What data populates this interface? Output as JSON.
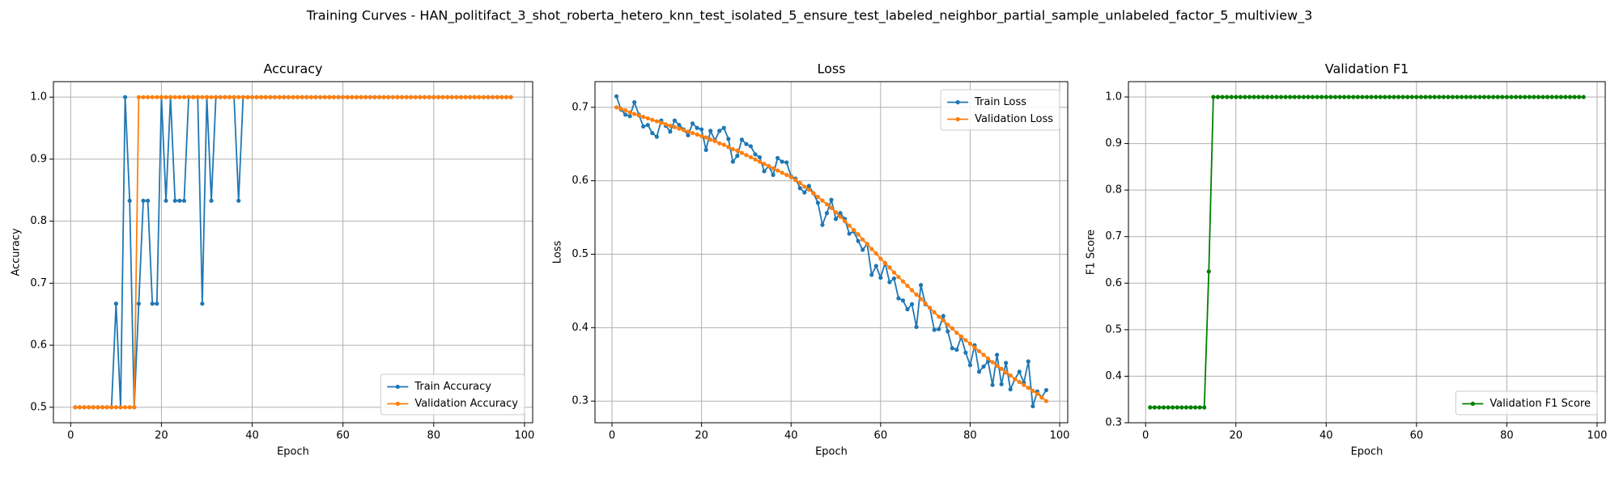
{
  "title": "Training Curves - HAN_politifact_3_shot_roberta_hetero_knn_test_isolated_5_ensure_test_labeled_neighbor_partial_sample_unlabeled_factor_5_multiview_3",
  "chart_data": [
    {
      "type": "line",
      "title": "Accuracy",
      "xlabel": "Epoch",
      "ylabel": "Accuracy",
      "x": [
        1,
        2,
        3,
        4,
        5,
        6,
        7,
        8,
        9,
        10,
        11,
        12,
        13,
        14,
        15,
        16,
        17,
        18,
        19,
        20,
        21,
        22,
        23,
        24,
        25,
        26,
        27,
        28,
        29,
        30,
        31,
        32,
        33,
        34,
        35,
        36,
        37,
        38,
        39,
        40,
        41,
        42,
        43,
        44,
        45,
        46,
        47,
        48,
        49,
        50,
        51,
        52,
        53,
        54,
        55,
        56,
        57,
        58,
        59,
        60,
        61,
        62,
        63,
        64,
        65,
        66,
        67,
        68,
        69,
        70,
        71,
        72,
        73,
        74,
        75,
        76,
        77,
        78,
        79,
        80,
        81,
        82,
        83,
        84,
        85,
        86,
        87,
        88,
        89,
        90,
        91,
        92,
        93,
        94,
        95,
        96,
        97
      ],
      "series": [
        {
          "name": "Train Accuracy",
          "color": "#1f77b4",
          "values": [
            0.5,
            0.5,
            0.5,
            0.5,
            0.5,
            0.5,
            0.5,
            0.5,
            0.5,
            0.667,
            0.5,
            1.0,
            0.833,
            0.5,
            0.667,
            0.833,
            0.833,
            0.667,
            0.667,
            1.0,
            0.833,
            1.0,
            0.833,
            0.833,
            0.833,
            1.0,
            1.0,
            1.0,
            0.667,
            1.0,
            0.833,
            1.0,
            1.0,
            1.0,
            1.0,
            1.0,
            0.833,
            1.0,
            1.0,
            1.0,
            1.0,
            1.0,
            1.0,
            1.0,
            1.0,
            1.0,
            1.0,
            1.0,
            1.0,
            1.0,
            1.0,
            1.0,
            1.0,
            1.0,
            1.0,
            1.0,
            1.0,
            1.0,
            1.0,
            1.0,
            1.0,
            1.0,
            1.0,
            1.0,
            1.0,
            1.0,
            1.0,
            1.0,
            1.0,
            1.0,
            1.0,
            1.0,
            1.0,
            1.0,
            1.0,
            1.0,
            1.0,
            1.0,
            1.0,
            1.0,
            1.0,
            1.0,
            1.0,
            1.0,
            1.0,
            1.0,
            1.0,
            1.0,
            1.0,
            1.0,
            1.0,
            1.0,
            1.0,
            1.0,
            1.0,
            1.0,
            1.0
          ]
        },
        {
          "name": "Validation Accuracy",
          "color": "#ff7f0e",
          "values": [
            0.5,
            0.5,
            0.5,
            0.5,
            0.5,
            0.5,
            0.5,
            0.5,
            0.5,
            0.5,
            0.5,
            0.5,
            0.5,
            0.5,
            1.0,
            1.0,
            1.0,
            1.0,
            1.0,
            1.0,
            1.0,
            1.0,
            1.0,
            1.0,
            1.0,
            1.0,
            1.0,
            1.0,
            1.0,
            1.0,
            1.0,
            1.0,
            1.0,
            1.0,
            1.0,
            1.0,
            1.0,
            1.0,
            1.0,
            1.0,
            1.0,
            1.0,
            1.0,
            1.0,
            1.0,
            1.0,
            1.0,
            1.0,
            1.0,
            1.0,
            1.0,
            1.0,
            1.0,
            1.0,
            1.0,
            1.0,
            1.0,
            1.0,
            1.0,
            1.0,
            1.0,
            1.0,
            1.0,
            1.0,
            1.0,
            1.0,
            1.0,
            1.0,
            1.0,
            1.0,
            1.0,
            1.0,
            1.0,
            1.0,
            1.0,
            1.0,
            1.0,
            1.0,
            1.0,
            1.0,
            1.0,
            1.0,
            1.0,
            1.0,
            1.0,
            1.0,
            1.0,
            1.0,
            1.0,
            1.0,
            1.0,
            1.0,
            1.0,
            1.0,
            1.0,
            1.0,
            1.0
          ]
        }
      ],
      "xlim": [
        -3.8,
        101.8
      ],
      "xticks": [
        0,
        20,
        40,
        60,
        80,
        100
      ],
      "ylim": [
        0.475,
        1.025
      ],
      "yticks": [
        0.5,
        0.6,
        0.7,
        0.8,
        0.9,
        {
          "value": 1,
          "label": "1.0"
        }
      ],
      "grid": true,
      "legend": "lower right"
    },
    {
      "type": "line",
      "title": "Loss",
      "xlabel": "Epoch",
      "ylabel": "Loss",
      "x": [
        1,
        2,
        3,
        4,
        5,
        6,
        7,
        8,
        9,
        10,
        11,
        12,
        13,
        14,
        15,
        16,
        17,
        18,
        19,
        20,
        21,
        22,
        23,
        24,
        25,
        26,
        27,
        28,
        29,
        30,
        31,
        32,
        33,
        34,
        35,
        36,
        37,
        38,
        39,
        40,
        41,
        42,
        43,
        44,
        45,
        46,
        47,
        48,
        49,
        50,
        51,
        52,
        53,
        54,
        55,
        56,
        57,
        58,
        59,
        60,
        61,
        62,
        63,
        64,
        65,
        66,
        67,
        68,
        69,
        70,
        71,
        72,
        73,
        74,
        75,
        76,
        77,
        78,
        79,
        80,
        81,
        82,
        83,
        84,
        85,
        86,
        87,
        88,
        89,
        90,
        91,
        92,
        93,
        94,
        95,
        96,
        97
      ],
      "series": [
        {
          "name": "Train Loss",
          "color": "#1f77b4",
          "values": [
            0.715,
            0.697,
            0.69,
            0.688,
            0.707,
            0.69,
            0.674,
            0.676,
            0.665,
            0.66,
            0.682,
            0.675,
            0.667,
            0.682,
            0.676,
            0.67,
            0.662,
            0.678,
            0.672,
            0.67,
            0.642,
            0.668,
            0.655,
            0.668,
            0.672,
            0.657,
            0.626,
            0.634,
            0.656,
            0.65,
            0.647,
            0.636,
            0.632,
            0.613,
            0.62,
            0.608,
            0.631,
            0.626,
            0.625,
            0.606,
            0.603,
            0.59,
            0.584,
            0.593,
            0.583,
            0.57,
            0.54,
            0.556,
            0.574,
            0.548,
            0.556,
            0.548,
            0.528,
            0.531,
            0.518,
            0.506,
            0.514,
            0.472,
            0.484,
            0.468,
            0.488,
            0.462,
            0.467,
            0.44,
            0.437,
            0.425,
            0.432,
            0.401,
            0.458,
            0.432,
            0.427,
            0.397,
            0.398,
            0.416,
            0.395,
            0.372,
            0.37,
            0.387,
            0.366,
            0.349,
            0.376,
            0.34,
            0.347,
            0.354,
            0.322,
            0.363,
            0.323,
            0.352,
            0.316,
            0.33,
            0.34,
            0.325,
            0.354,
            0.293,
            0.313,
            0.305,
            0.315
          ]
        },
        {
          "name": "Validation Loss",
          "color": "#ff7f0e",
          "values": [
            0.7,
            0.698,
            0.696,
            0.693,
            0.691,
            0.689,
            0.687,
            0.685,
            0.683,
            0.681,
            0.679,
            0.677,
            0.675,
            0.673,
            0.671,
            0.669,
            0.667,
            0.665,
            0.663,
            0.661,
            0.659,
            0.656,
            0.654,
            0.651,
            0.649,
            0.646,
            0.643,
            0.641,
            0.638,
            0.635,
            0.632,
            0.629,
            0.626,
            0.623,
            0.62,
            0.617,
            0.614,
            0.611,
            0.608,
            0.605,
            0.601,
            0.597,
            0.592,
            0.588,
            0.583,
            0.578,
            0.573,
            0.568,
            0.563,
            0.557,
            0.551,
            0.545,
            0.539,
            0.533,
            0.527,
            0.52,
            0.514,
            0.507,
            0.501,
            0.494,
            0.488,
            0.482,
            0.475,
            0.469,
            0.463,
            0.457,
            0.451,
            0.445,
            0.439,
            0.433,
            0.427,
            0.421,
            0.415,
            0.41,
            0.404,
            0.399,
            0.393,
            0.388,
            0.383,
            0.378,
            0.373,
            0.368,
            0.363,
            0.358,
            0.353,
            0.348,
            0.344,
            0.339,
            0.335,
            0.33,
            0.326,
            0.322,
            0.318,
            0.314,
            0.31,
            0.305,
            0.3
          ]
        }
      ],
      "xlim": [
        -3.8,
        101.8
      ],
      "xticks": [
        0,
        20,
        40,
        60,
        80,
        100
      ],
      "ylim": [
        0.2705,
        0.735
      ],
      "yticks": [
        0.3,
        0.4,
        0.5,
        0.6,
        0.7
      ],
      "grid": true,
      "legend": "upper right"
    },
    {
      "type": "line",
      "title": "Validation F1",
      "xlabel": "Epoch",
      "ylabel": "F1 Score",
      "x": [
        1,
        2,
        3,
        4,
        5,
        6,
        7,
        8,
        9,
        10,
        11,
        12,
        13,
        14,
        15,
        16,
        17,
        18,
        19,
        20,
        21,
        22,
        23,
        24,
        25,
        26,
        27,
        28,
        29,
        30,
        31,
        32,
        33,
        34,
        35,
        36,
        37,
        38,
        39,
        40,
        41,
        42,
        43,
        44,
        45,
        46,
        47,
        48,
        49,
        50,
        51,
        52,
        53,
        54,
        55,
        56,
        57,
        58,
        59,
        60,
        61,
        62,
        63,
        64,
        65,
        66,
        67,
        68,
        69,
        70,
        71,
        72,
        73,
        74,
        75,
        76,
        77,
        78,
        79,
        80,
        81,
        82,
        83,
        84,
        85,
        86,
        87,
        88,
        89,
        90,
        91,
        92,
        93,
        94,
        95,
        96,
        97
      ],
      "series": [
        {
          "name": "Validation F1 Score",
          "color": "#008000",
          "values": [
            0.333,
            0.333,
            0.333,
            0.333,
            0.333,
            0.333,
            0.333,
            0.333,
            0.333,
            0.333,
            0.333,
            0.333,
            0.333,
            0.625,
            1.0,
            1.0,
            1.0,
            1.0,
            1.0,
            1.0,
            1.0,
            1.0,
            1.0,
            1.0,
            1.0,
            1.0,
            1.0,
            1.0,
            1.0,
            1.0,
            1.0,
            1.0,
            1.0,
            1.0,
            1.0,
            1.0,
            1.0,
            1.0,
            1.0,
            1.0,
            1.0,
            1.0,
            1.0,
            1.0,
            1.0,
            1.0,
            1.0,
            1.0,
            1.0,
            1.0,
            1.0,
            1.0,
            1.0,
            1.0,
            1.0,
            1.0,
            1.0,
            1.0,
            1.0,
            1.0,
            1.0,
            1.0,
            1.0,
            1.0,
            1.0,
            1.0,
            1.0,
            1.0,
            1.0,
            1.0,
            1.0,
            1.0,
            1.0,
            1.0,
            1.0,
            1.0,
            1.0,
            1.0,
            1.0,
            1.0,
            1.0,
            1.0,
            1.0,
            1.0,
            1.0,
            1.0,
            1.0,
            1.0,
            1.0,
            1.0,
            1.0,
            1.0,
            1.0,
            1.0,
            1.0,
            1.0,
            1.0
          ]
        }
      ],
      "xlim": [
        -3.8,
        101.8
      ],
      "xticks": [
        0,
        20,
        40,
        60,
        80,
        100
      ],
      "ylim": [
        0.3,
        1.033
      ],
      "yticks": [
        0.3,
        0.4,
        0.5,
        0.6,
        0.7,
        0.8,
        0.9,
        {
          "value": 1,
          "label": "1.0"
        }
      ],
      "grid": true,
      "legend": "lower right"
    }
  ]
}
